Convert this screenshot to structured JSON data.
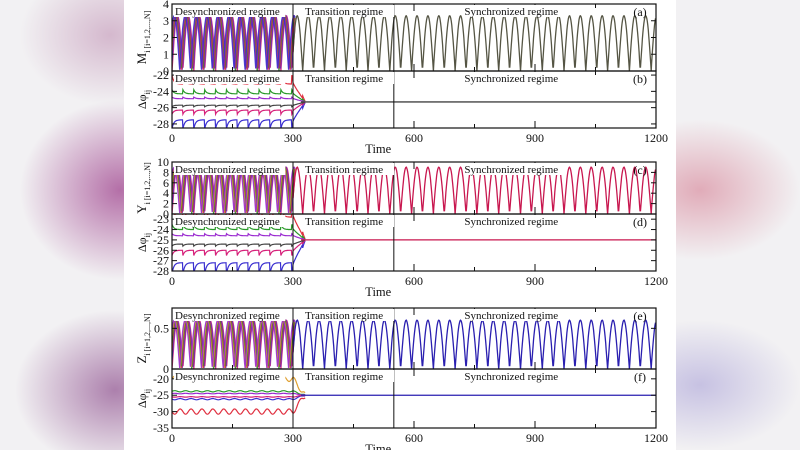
{
  "page": {
    "background_left_tint": "#b06aa0",
    "background_right_tint": "#d9a0b0",
    "figure_background": "#ffffff"
  },
  "chart_data": [
    {
      "panel": "(a)",
      "type": "line",
      "ylabel": "M_i [i=1,2,...,N]",
      "xlabel": "",
      "xlim": [
        0,
        1200
      ],
      "ylim": [
        0,
        4
      ],
      "yticks": [
        "0",
        "1",
        "2",
        "3",
        "4"
      ],
      "xticks": [],
      "regimes": [
        {
          "label": "Desynchronized regime",
          "x_start": 0,
          "x_end": 300
        },
        {
          "label": "Transition regime",
          "x_start": 300,
          "x_end": 550
        },
        {
          "label": "Synchronized regime",
          "x_start": 550,
          "x_end": 1200
        }
      ],
      "annotations": [
        "(a)"
      ],
      "series_description": "Multiple oscillators (magenta/blue/red/green) with amplitude ~0 to 3.3 and period ~27; traces overlap in synchronized regime (dark olive/gray).",
      "amplitude_range": [
        0,
        3.3
      ],
      "period_approx": 27,
      "line_color_sync": "#555544",
      "line_colors_desync": [
        "#d6207a",
        "#3a2fd0",
        "#e03040",
        "#2a8a2a"
      ]
    },
    {
      "panel": "(b)",
      "type": "line",
      "ylabel": "Δφ_ij",
      "xlabel": "Time",
      "xlim": [
        0,
        1200
      ],
      "ylim": [
        -28.5,
        -21.5
      ],
      "yticks": [
        "-22",
        "-24",
        "-26",
        "-28"
      ],
      "xticks": [
        "0",
        "300",
        "600",
        "900",
        "1200"
      ],
      "regimes": [
        {
          "label": "Desynchronized regime",
          "x_start": 0,
          "x_end": 300
        },
        {
          "label": "Transition regime",
          "x_start": 300,
          "x_end": 550
        },
        {
          "label": "Synchronized regime",
          "x_start": 550,
          "x_end": 1200
        }
      ],
      "annotations": [
        "(b)"
      ],
      "series_description": "Phase differences fluctuate between ~-28 and ~-22.5 during desynchronized regime, converge to ~-25.3 after t≈330.",
      "converged_value": -25.3,
      "line_color_sync": "#444444"
    },
    {
      "panel": "(c)",
      "type": "line",
      "ylabel": "Y_i [i=1,2,...,N]",
      "xlabel": "",
      "xlim": [
        0,
        1200
      ],
      "ylim": [
        0,
        10
      ],
      "yticks": [
        "0",
        "2",
        "4",
        "6",
        "8",
        "10"
      ],
      "xticks": [],
      "regimes": [
        {
          "label": "Desynchronized regime",
          "x_start": 0,
          "x_end": 300
        },
        {
          "label": "Transition regime",
          "x_start": 300,
          "x_end": 550
        },
        {
          "label": "Synchronized regime",
          "x_start": 550,
          "x_end": 1200
        }
      ],
      "annotations": [
        "(c)"
      ],
      "series_description": "Oscillations from ~0 to ~9 with period ~27; synchronized traces crimson.",
      "amplitude_range": [
        0,
        9
      ],
      "period_approx": 27,
      "line_color_sync": "#c8174f"
    },
    {
      "panel": "(d)",
      "type": "line",
      "ylabel": "Δφ_ij",
      "xlabel": "Time",
      "xlim": [
        0,
        1200
      ],
      "ylim": [
        -28,
        -22.5
      ],
      "yticks": [
        "-23",
        "-24",
        "-25",
        "-26",
        "-27",
        "-28"
      ],
      "xticks": [
        "0",
        "300",
        "600",
        "900",
        "1200"
      ],
      "regimes": [
        {
          "label": "Desynchronized regime",
          "x_start": 0,
          "x_end": 300
        },
        {
          "label": "Transition regime",
          "x_start": 300,
          "x_end": 550
        },
        {
          "label": "Synchronized regime",
          "x_start": 550,
          "x_end": 1200
        }
      ],
      "annotations": [
        "(d)"
      ],
      "series_description": "Phase differences spread between ~-27.5 and ~-23.3 in desynchronized regime; converge to ~-25 after t≈340.",
      "converged_value": -25,
      "line_color_sync": "#c8174f"
    },
    {
      "panel": "(e)",
      "type": "line",
      "ylabel": "Z_i [i=1,2,...,N]",
      "xlabel": "",
      "xlim": [
        0,
        1200
      ],
      "ylim": [
        0,
        0.75
      ],
      "yticks": [
        "0",
        "0.5"
      ],
      "xticks": [],
      "regimes": [
        {
          "label": "Desynchronized regime",
          "x_start": 0,
          "x_end": 300
        },
        {
          "label": "Transition regime",
          "x_start": 300,
          "x_end": 550
        },
        {
          "label": "Synchronized regime",
          "x_start": 550,
          "x_end": 1200
        }
      ],
      "annotations": [
        "(e)"
      ],
      "series_description": "Oscillations from ~0 to ~0.6 with period ~27; synchronized traces blue/purple.",
      "amplitude_range": [
        0,
        0.6
      ],
      "period_approx": 27,
      "line_color_sync": "#2a1fb0"
    },
    {
      "panel": "(f)",
      "type": "line",
      "ylabel": "Δφ_ij",
      "xlabel": "Time",
      "xlim": [
        0,
        1200
      ],
      "ylim": [
        -35,
        -17
      ],
      "yticks": [
        "-20",
        "-25",
        "-30",
        "-35"
      ],
      "xticks": [
        "0",
        "300",
        "600",
        "900",
        "1200"
      ],
      "regimes": [
        {
          "label": "Desynchronized regime",
          "x_start": 0,
          "x_end": 300
        },
        {
          "label": "Transition regime",
          "x_start": 300,
          "x_end": 550
        },
        {
          "label": "Synchronized regime",
          "x_start": 550,
          "x_end": 1200
        }
      ],
      "annotations": [
        "(f)"
      ],
      "series_description": "Orange trace ~-20, green/blue near -24 to -26, red ~-30 during desynchronized regime; all converge to ~-25 after t≈330.",
      "converged_value": -25,
      "line_color_sync": "#2a1fb0"
    }
  ],
  "labels": {
    "desync": "Desynchronized regime",
    "transition": "Transition regime",
    "sync": "Synchronized regime",
    "time": "Time",
    "panel_a": "(a)",
    "panel_b": "(b)",
    "panel_c": "(c)",
    "panel_d": "(d)",
    "panel_e": "(e)",
    "panel_f": "(f)",
    "ylabel_M": "M",
    "ylabel_Y": "Y",
    "ylabel_Z": "Z",
    "ylabel_sub": "i [i=1,2,...,N]",
    "ylabel_dphi": "Δφ",
    "ylabel_dphi_sub": "ij"
  }
}
